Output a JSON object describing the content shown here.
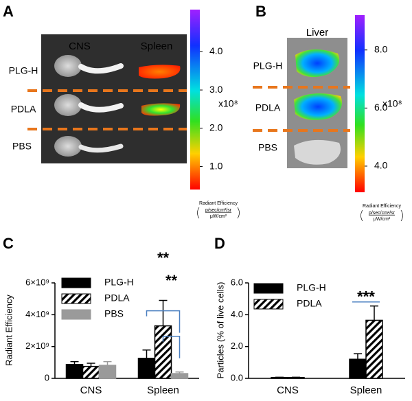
{
  "panels": [
    {
      "letter": "A",
      "column_labels": [
        "CNS",
        "Spleen"
      ],
      "row_labels": [
        "PLG-H",
        "PDLA",
        "PBS"
      ],
      "colorbar": {
        "clim": [
          0.4,
          5.1
        ],
        "ticks": [
          {
            "value": 1,
            "label": "1.0"
          },
          {
            "value": 2,
            "label": "2.0"
          },
          {
            "value": 3,
            "label": "3.0"
          },
          {
            "value": 4,
            "label": "4.0"
          }
        ],
        "multiplier": "x10⁸",
        "unit_label": "Radiant Efficiency",
        "unit_numerator": "p/sec/cm²/sr",
        "unit_denominator": "μW/cm²"
      }
    },
    {
      "letter": "B",
      "column_labels": [
        "Liver"
      ],
      "row_labels": [
        "PLG-H",
        "PDLA",
        "PBS"
      ],
      "colorbar": {
        "clim": [
          3.1,
          9.2
        ],
        "ticks": [
          {
            "value": 4,
            "label": "4.0"
          },
          {
            "value": 6,
            "label": "6.0"
          },
          {
            "value": 8,
            "label": "8.0"
          }
        ],
        "multiplier": "x10⁸",
        "unit_label": "Radiant Efficiency",
        "unit_numerator": "p/sec/cm²/sr",
        "unit_denominator": "μW/cm²"
      }
    }
  ],
  "chart_data": [
    {
      "letter": "C",
      "type": "bar",
      "y_label": "Radiant Efficiency",
      "categories": [
        "CNS",
        "Spleen"
      ],
      "ylim": [
        0,
        6000000000
      ],
      "yticks": [
        0,
        {
          "value": 2000000000,
          "label": "2×10⁹"
        },
        {
          "value": 4000000000,
          "label": "4×10⁹"
        },
        {
          "value": 6000000000,
          "label": "6×10⁹"
        }
      ],
      "series": [
        {
          "name": "PLG-H",
          "color": "#000000",
          "values": [
            870000000,
            1260000000
          ],
          "errors": [
            180000000,
            520000000
          ]
        },
        {
          "name": "PDLA",
          "color": "#000000",
          "pattern": "hatch",
          "values": [
            750000000,
            3300000000
          ],
          "errors": [
            200000000,
            1600000000
          ]
        },
        {
          "name": "PBS",
          "color": "#9a9a9a",
          "values": [
            820000000,
            300000000
          ],
          "errors": [
            230000000,
            100000000
          ]
        }
      ],
      "legend": "upper left",
      "annotations": [
        {
          "text": "**"
        },
        {
          "text": "**"
        }
      ]
    },
    {
      "letter": "D",
      "type": "bar",
      "y_label": "Particles (% of live cells)",
      "categories": [
        "CNS",
        "Spleen"
      ],
      "ylim": [
        0,
        6
      ],
      "yticks": [
        {
          "value": 0,
          "label": "0.0"
        },
        {
          "value": 2,
          "label": "2.0"
        },
        {
          "value": 4,
          "label": "4.0"
        },
        {
          "value": 6,
          "label": "6.0"
        }
      ],
      "series": [
        {
          "name": "PLG-H",
          "color": "#000000",
          "values": [
            0.05,
            1.2
          ],
          "errors": [
            0.02,
            0.35
          ]
        },
        {
          "name": "PDLA",
          "color": "#000000",
          "pattern": "hatch",
          "values": [
            0.05,
            3.65
          ],
          "errors": [
            0.02,
            0.9
          ]
        }
      ],
      "legend": "upper left",
      "annotations": [
        {
          "text": "***"
        }
      ]
    }
  ]
}
